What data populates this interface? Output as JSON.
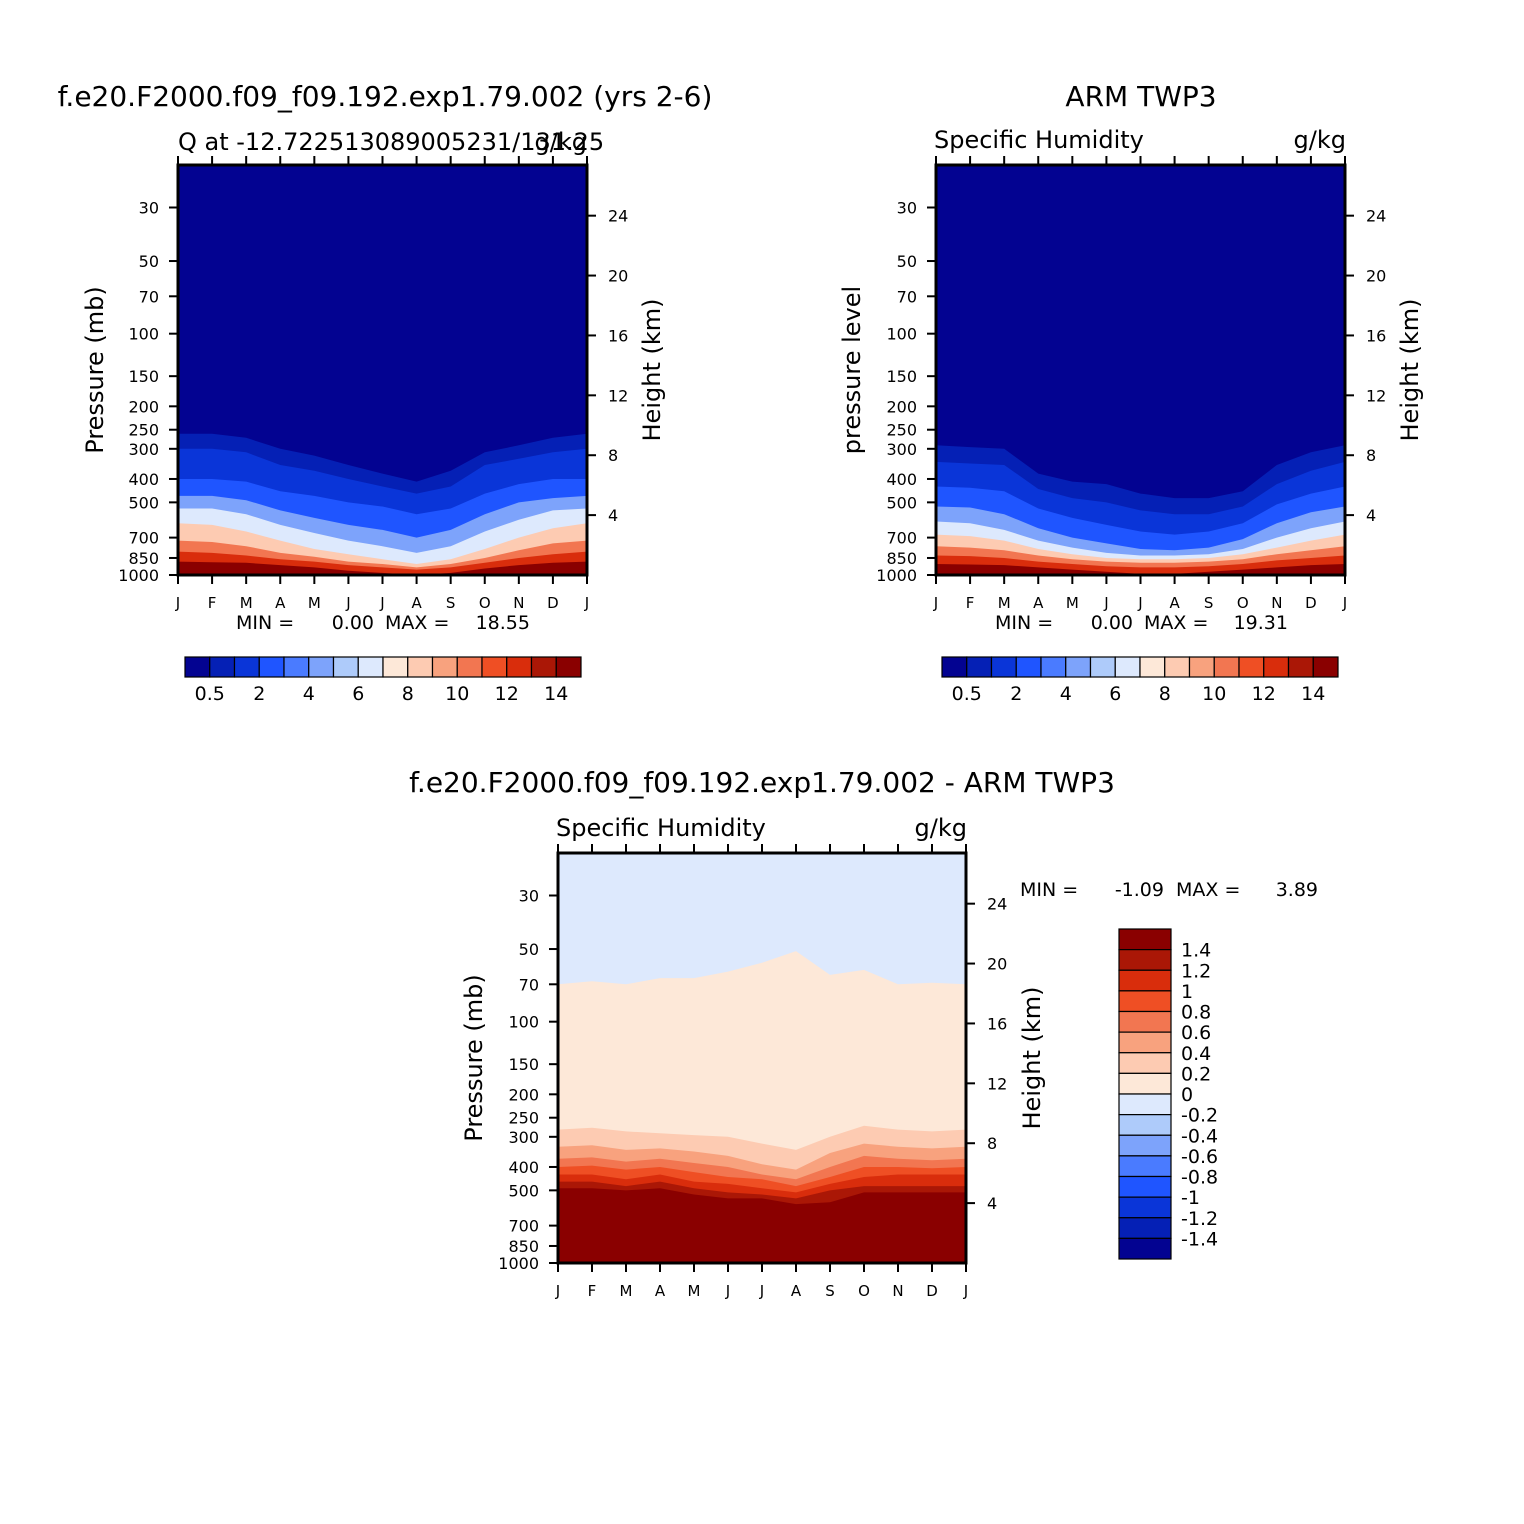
{
  "chart_data": [
    {
      "type": "heatmap",
      "title": "f.e20.F2000.f09_f09.192.exp1.79.002 (yrs 2-6)",
      "subtitle_left": "Q at -12.722513089005231/131.25",
      "subtitle_right": "g/kg",
      "ylabel": "Pressure (mb)",
      "ylabel_right": "Height (km)",
      "x_ticks": [
        "J",
        "F",
        "M",
        "A",
        "M",
        "J",
        "J",
        "A",
        "S",
        "O",
        "N",
        "D",
        "J"
      ],
      "y_ticks": [
        "30",
        "50",
        "70",
        "100",
        "150",
        "200",
        "250",
        "300",
        "400",
        "500",
        "700",
        "850",
        "1000"
      ],
      "y_right_ticks": [
        "24",
        "20",
        "16",
        "12",
        "8",
        "4"
      ],
      "stats": {
        "min_label": "MIN =",
        "min": "0.00",
        "max_label": "MAX =",
        "max": "18.55"
      },
      "colorbar_labels": [
        "0.5",
        "2",
        "4",
        "6",
        "8",
        "10",
        "12",
        "14"
      ],
      "colorbar_colors": [
        "#030391",
        "#0520b5",
        "#0a35d8",
        "#1f55ff",
        "#4a7bff",
        "#7da3fb",
        "#aecbfa",
        "#dde9fd",
        "#fde8d8",
        "#fdcbb2",
        "#f8a27e",
        "#f27651",
        "#ef4f24",
        "#d92d0c",
        "#aa1706",
        "#8a0000"
      ],
      "field": {
        "months": [
          "J",
          "F",
          "M",
          "A",
          "M",
          "J",
          "J",
          "A",
          "S",
          "O",
          "N",
          "D",
          "J"
        ],
        "levels": [
          {
            "q": 0.5,
            "p": [
              260,
              260,
              270,
              300,
              320,
              350,
              380,
              410,
              370,
              310,
              290,
              270,
              260
            ]
          },
          {
            "q": 1,
            "p": [
              300,
              300,
              310,
              350,
              370,
              400,
              430,
              460,
              430,
              350,
              330,
              310,
              300
            ]
          },
          {
            "q": 2,
            "p": [
              400,
              400,
              410,
              450,
              470,
              500,
              520,
              560,
              530,
              460,
              420,
              400,
              400
            ]
          },
          {
            "q": 4,
            "p": [
              470,
              470,
              490,
              540,
              580,
              620,
              650,
              700,
              650,
              560,
              500,
              480,
              470
            ]
          },
          {
            "q": 6,
            "p": [
              530,
              530,
              560,
              620,
              670,
              720,
              760,
              810,
              760,
              660,
              590,
              540,
              530
            ]
          },
          {
            "q": 8,
            "p": [
              610,
              620,
              660,
              720,
              780,
              820,
              860,
              900,
              860,
              780,
              700,
              640,
              610
            ]
          },
          {
            "q": 10,
            "p": [
              720,
              730,
              760,
              810,
              840,
              880,
              900,
              930,
              900,
              850,
              790,
              740,
              720
            ]
          },
          {
            "q": 12,
            "p": [
              800,
              810,
              830,
              860,
              880,
              910,
              930,
              950,
              930,
              890,
              850,
              820,
              800
            ]
          },
          {
            "q": 14,
            "p": [
              880,
              885,
              890,
              910,
              930,
              960,
              980,
              1000,
              980,
              940,
              910,
              890,
              880
            ]
          }
        ]
      }
    },
    {
      "type": "heatmap",
      "title": "ARM TWP3",
      "subtitle_left": "Specific Humidity",
      "subtitle_right": "g/kg",
      "ylabel": "pressure level",
      "ylabel_right": "Height (km)",
      "x_ticks": [
        "J",
        "F",
        "M",
        "A",
        "M",
        "J",
        "J",
        "A",
        "S",
        "O",
        "N",
        "D",
        "J"
      ],
      "y_ticks": [
        "30",
        "50",
        "70",
        "100",
        "150",
        "200",
        "250",
        "300",
        "400",
        "500",
        "700",
        "850",
        "1000"
      ],
      "y_right_ticks": [
        "24",
        "20",
        "16",
        "12",
        "8",
        "4"
      ],
      "stats": {
        "min_label": "MIN =",
        "min": "0.00",
        "max_label": "MAX =",
        "max": "19.31"
      },
      "colorbar_labels": [
        "0.5",
        "2",
        "4",
        "6",
        "8",
        "10",
        "12",
        "14"
      ],
      "colorbar_colors": [
        "#030391",
        "#0520b5",
        "#0a35d8",
        "#1f55ff",
        "#4a7bff",
        "#7da3fb",
        "#aecbfa",
        "#dde9fd",
        "#fde8d8",
        "#fdcbb2",
        "#f8a27e",
        "#f27651",
        "#ef4f24",
        "#d92d0c",
        "#aa1706",
        "#8a0000"
      ],
      "field": {
        "months": [
          "J",
          "F",
          "M",
          "A",
          "M",
          "J",
          "J",
          "A",
          "S",
          "O",
          "N",
          "D",
          "J"
        ],
        "levels": [
          {
            "q": 0.5,
            "p": [
              290,
              295,
              300,
              380,
              410,
              420,
              460,
              480,
              480,
              450,
              350,
              310,
              290
            ]
          },
          {
            "q": 1,
            "p": [
              340,
              345,
              350,
              440,
              480,
              500,
              540,
              560,
              560,
              520,
              420,
              370,
              340
            ]
          },
          {
            "q": 2,
            "p": [
              430,
              435,
              450,
              530,
              580,
              620,
              660,
              680,
              660,
              610,
              510,
              460,
              430
            ]
          },
          {
            "q": 4,
            "p": [
              520,
              525,
              560,
              640,
              700,
              740,
              780,
              790,
              770,
              710,
              610,
              550,
              520
            ]
          },
          {
            "q": 6,
            "p": [
              600,
              610,
              650,
              720,
              770,
              810,
              830,
              830,
              820,
              780,
              700,
              640,
              600
            ]
          },
          {
            "q": 8,
            "p": [
              680,
              690,
              720,
              780,
              820,
              850,
              860,
              860,
              850,
              820,
              770,
              720,
              680
            ]
          },
          {
            "q": 10,
            "p": [
              760,
              770,
              790,
              830,
              860,
              880,
              890,
              890,
              880,
              860,
              820,
              790,
              760
            ]
          },
          {
            "q": 12,
            "p": [
              830,
              835,
              850,
              880,
              900,
              920,
              930,
              930,
              920,
              900,
              870,
              850,
              830
            ]
          },
          {
            "q": 14,
            "p": [
              900,
              905,
              910,
              930,
              950,
              970,
              990,
              990,
              970,
              950,
              930,
              910,
              900
            ]
          }
        ]
      }
    },
    {
      "type": "heatmap",
      "title": "f.e20.F2000.f09_f09.192.exp1.79.002 - ARM TWP3",
      "subtitle_left": "Specific Humidity",
      "subtitle_right": "g/kg",
      "ylabel": "Pressure (mb)",
      "ylabel_right": "Height (km)",
      "x_ticks": [
        "J",
        "F",
        "M",
        "A",
        "M",
        "J",
        "J",
        "A",
        "S",
        "O",
        "N",
        "D",
        "J"
      ],
      "y_ticks": [
        "30",
        "50",
        "70",
        "100",
        "150",
        "200",
        "250",
        "300",
        "400",
        "500",
        "700",
        "850",
        "1000"
      ],
      "y_right_ticks": [
        "24",
        "20",
        "16",
        "12",
        "8",
        "4"
      ],
      "stats": {
        "min_label": "MIN =",
        "min": "-1.09",
        "max_label": "MAX =",
        "max": "3.89"
      },
      "colorbar_labels": [
        "1.4",
        "1.2",
        "1",
        "0.8",
        "0.6",
        "0.4",
        "0.2",
        "0",
        "-0.2",
        "-0.4",
        "-0.6",
        "-0.8",
        "-1",
        "-1.2",
        "-1.4"
      ],
      "colorbar_colors": [
        "#8a0000",
        "#aa1706",
        "#d92d0c",
        "#ef4f24",
        "#f27651",
        "#f8a27e",
        "#fdcbb2",
        "#fde8d8",
        "#dde9fd",
        "#aecbfa",
        "#7da3fb",
        "#4a7bff",
        "#1f55ff",
        "#0a35d8",
        "#0520b5",
        "#030391"
      ],
      "field": {
        "months": [
          "J",
          "F",
          "M",
          "A",
          "M",
          "J",
          "J",
          "A",
          "S",
          "O",
          "N",
          "D",
          "J"
        ],
        "levels": [
          {
            "q": 0,
            "p": [
              70,
              68,
              70,
              66,
              66,
              62,
              57,
              51,
              64,
              61,
              70,
              69,
              70
            ]
          },
          {
            "q": 0.2,
            "p": [
              280,
              275,
              285,
              290,
              295,
              300,
              320,
              340,
              300,
              270,
              280,
              285,
              280
            ]
          },
          {
            "q": 0.4,
            "p": [
              330,
              325,
              340,
              335,
              345,
              360,
              390,
              410,
              350,
              320,
              330,
              335,
              330
            ]
          },
          {
            "q": 0.6,
            "p": [
              370,
              365,
              380,
              370,
              385,
              400,
              430,
              450,
              400,
              360,
              370,
              375,
              370
            ]
          },
          {
            "q": 0.8,
            "p": [
              400,
              395,
              410,
              400,
              420,
              440,
              450,
              480,
              440,
              400,
              400,
              405,
              400
            ]
          },
          {
            "q": 1,
            "p": [
              430,
              430,
              450,
              430,
              460,
              470,
              490,
              510,
              470,
              440,
              430,
              430,
              430
            ]
          },
          {
            "q": 1.2,
            "p": [
              460,
              460,
              480,
              460,
              490,
              510,
              520,
              540,
              500,
              480,
              480,
              480,
              480
            ]
          },
          {
            "q": 1.4,
            "p": [
              490,
              490,
              500,
              490,
              520,
              540,
              540,
              570,
              560,
              510,
              510,
              510,
              510
            ]
          }
        ]
      }
    }
  ]
}
